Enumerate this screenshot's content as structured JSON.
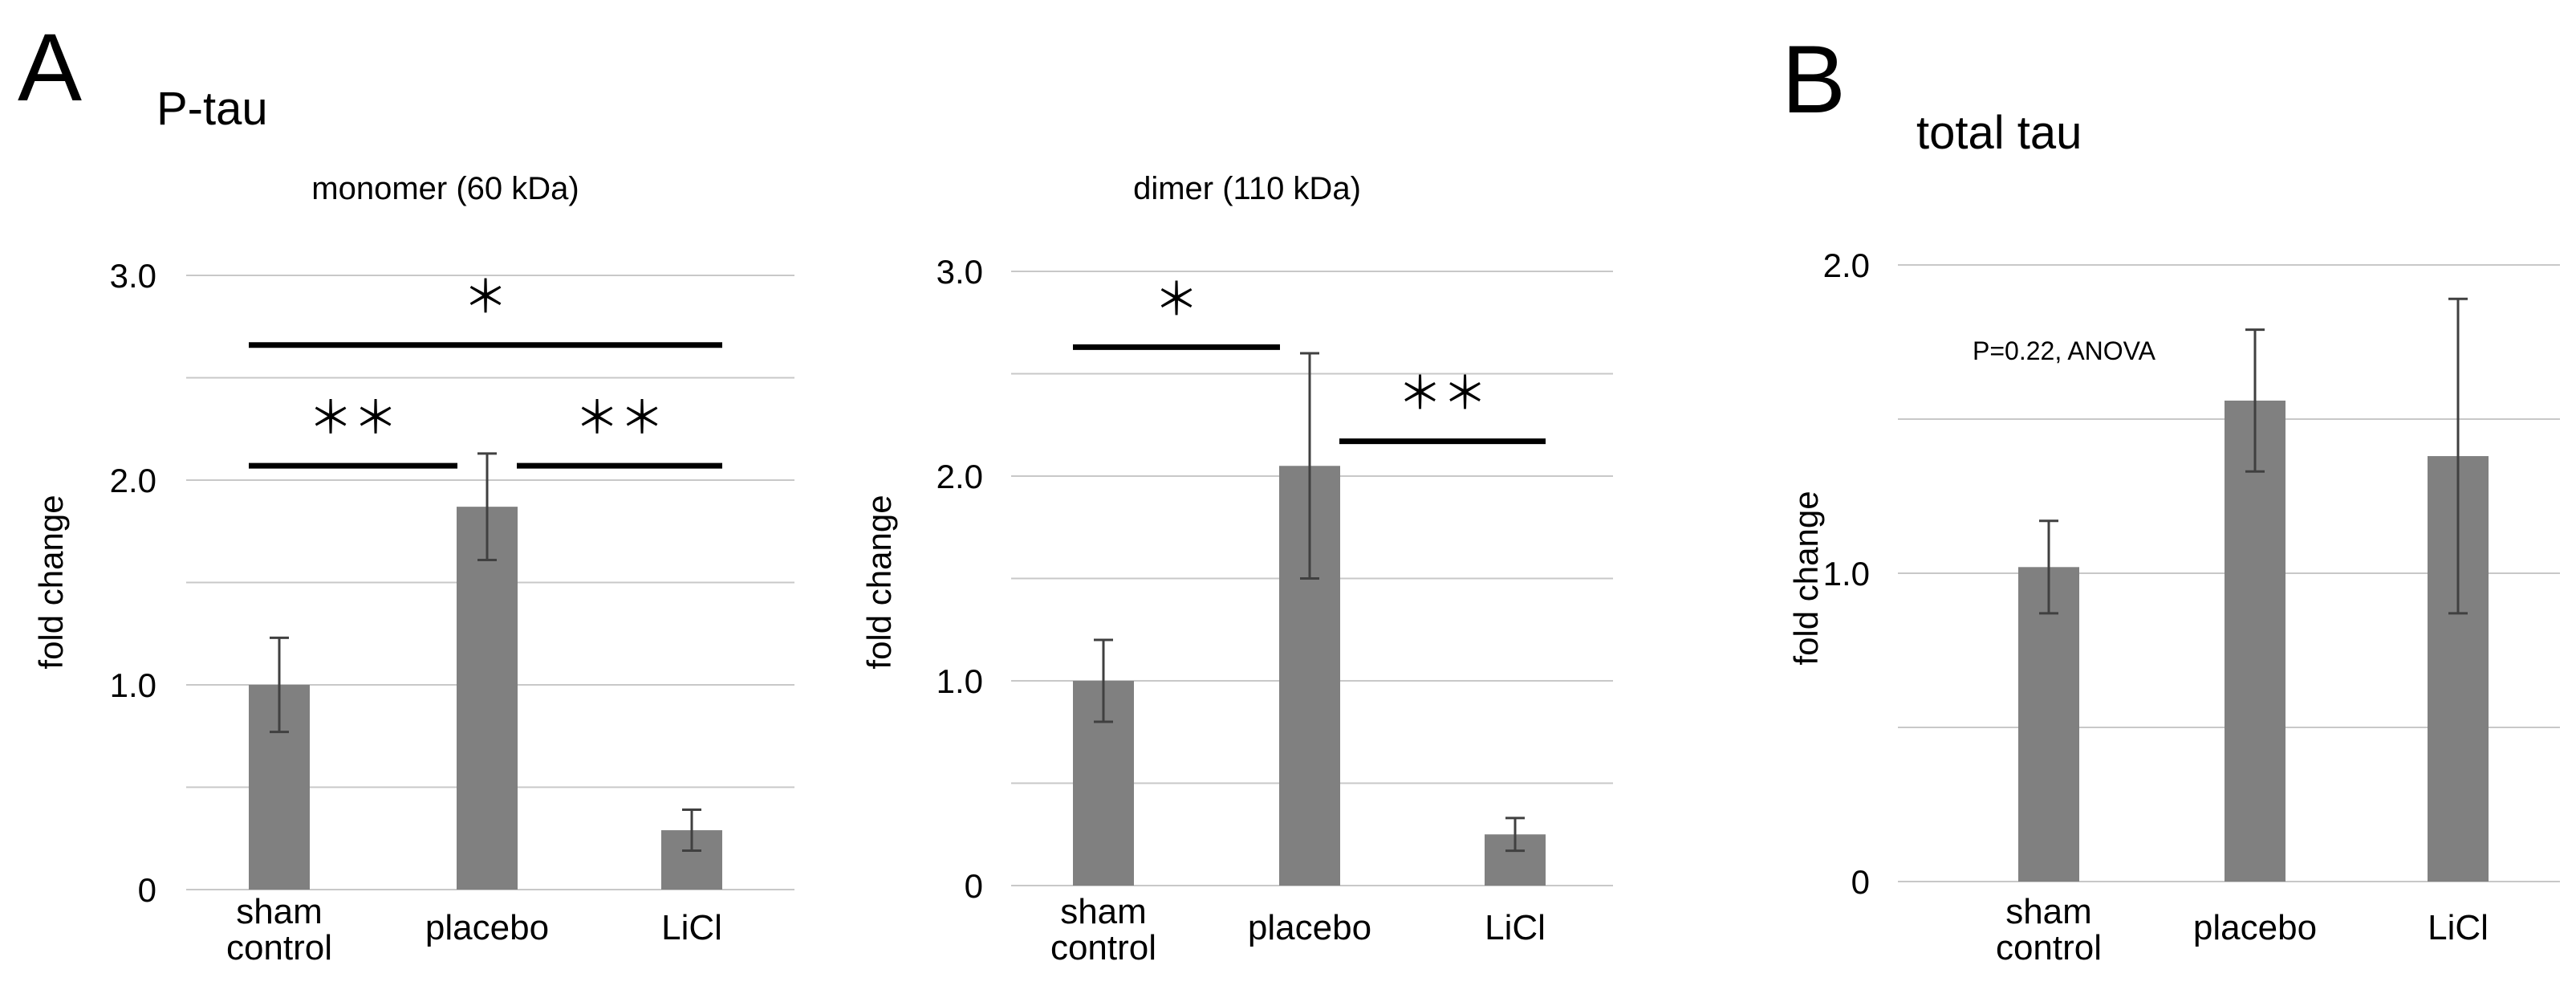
{
  "panels": {
    "a_letter": "A",
    "a_title": "P-tau",
    "b_letter": "B",
    "b_title": "total tau"
  },
  "chart_data": [
    {
      "type": "bar",
      "title": "monomer (60 kDa)",
      "ylabel": "fold change",
      "ylim": [
        0,
        3.0
      ],
      "yticks": [
        "0",
        "1.0",
        "2.0",
        "3.0"
      ],
      "categories": [
        "sham\ncontrol",
        "placebo",
        "LiCl"
      ],
      "values": [
        1.0,
        1.87,
        0.29
      ],
      "errors": [
        0.23,
        0.26,
        0.1
      ],
      "bar_color": "#808080",
      "grid": true,
      "significance": [
        {
          "from": 0,
          "to": 1,
          "label": "＊＊",
          "level": 2.07
        },
        {
          "from": 1,
          "to": 2,
          "label": "＊＊",
          "level": 2.07
        },
        {
          "from": 0,
          "to": 2,
          "label": "＊",
          "level": 2.66
        }
      ]
    },
    {
      "type": "bar",
      "title": "dimer (110 kDa)",
      "ylabel": "fold change",
      "ylim": [
        0,
        3.0
      ],
      "yticks": [
        "0",
        "1.0",
        "2.0",
        "3.0"
      ],
      "categories": [
        "sham\ncontrol",
        "placebo",
        "LiCl"
      ],
      "values": [
        1.0,
        2.05,
        0.25
      ],
      "errors": [
        0.2,
        0.55,
        0.08
      ],
      "bar_color": "#808080",
      "grid": true,
      "significance": [
        {
          "from": 0,
          "to": 1,
          "label": "＊",
          "level": 2.63
        },
        {
          "from": 1,
          "to": 2,
          "label": "＊＊",
          "level": 2.17
        }
      ]
    },
    {
      "type": "bar",
      "title": "",
      "ylabel": "fold change",
      "ylim": [
        0,
        2.0
      ],
      "yticks": [
        "0",
        "1.0",
        "2.0"
      ],
      "categories": [
        "sham\ncontrol",
        "placebo",
        "LiCl"
      ],
      "values": [
        1.02,
        1.56,
        1.38
      ],
      "errors": [
        0.15,
        0.23,
        0.51
      ],
      "bar_color": "#808080",
      "grid": true,
      "annotation": "P=0.22, ANOVA",
      "significance": []
    }
  ]
}
